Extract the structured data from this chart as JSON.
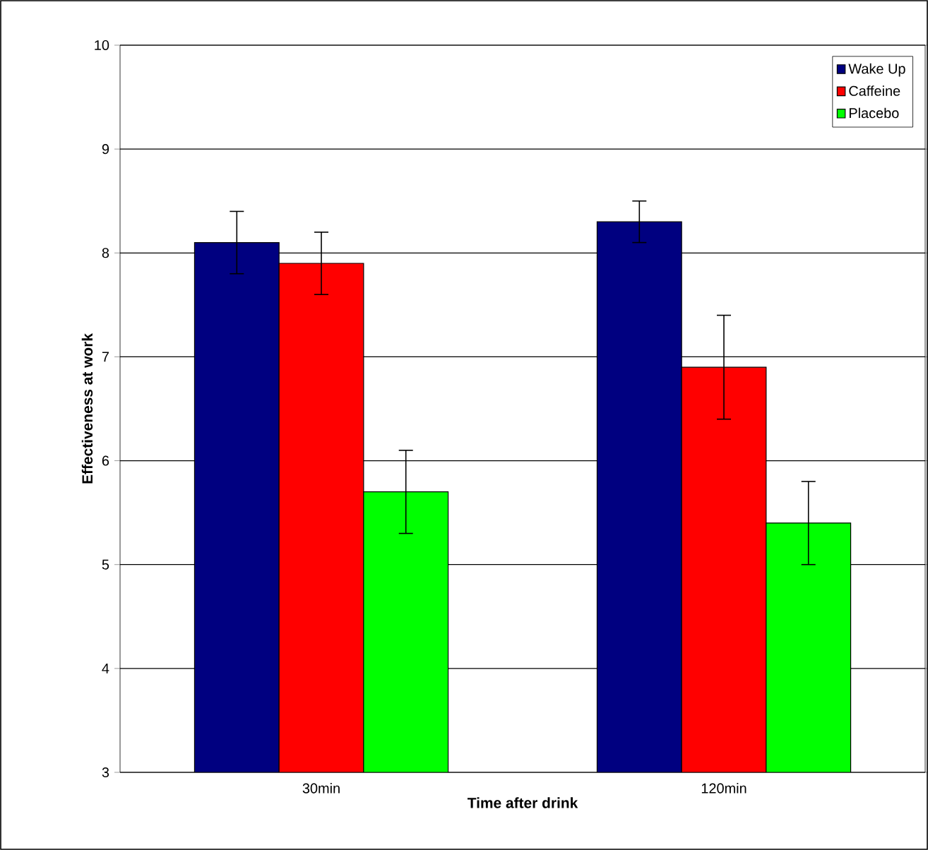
{
  "chart_data": {
    "type": "bar",
    "xlabel": "Time after drink",
    "ylabel": "Effectiveness at work",
    "categories": [
      "30min",
      "120min"
    ],
    "series": [
      {
        "name": "Wake Up",
        "color": "#000080",
        "values": [
          8.1,
          8.3
        ],
        "errors": [
          0.3,
          0.2
        ]
      },
      {
        "name": "Caffeine",
        "color": "#ff0000",
        "values": [
          7.9,
          6.9
        ],
        "errors": [
          0.3,
          0.5
        ]
      },
      {
        "name": "Placebo",
        "color": "#00ff00",
        "values": [
          5.7,
          5.4
        ],
        "errors": [
          0.4,
          0.4
        ]
      }
    ],
    "ylim": [
      3,
      10
    ],
    "yticks": [
      3,
      4,
      5,
      6,
      7,
      8,
      9,
      10
    ],
    "grid": "y",
    "legend": "top right"
  }
}
